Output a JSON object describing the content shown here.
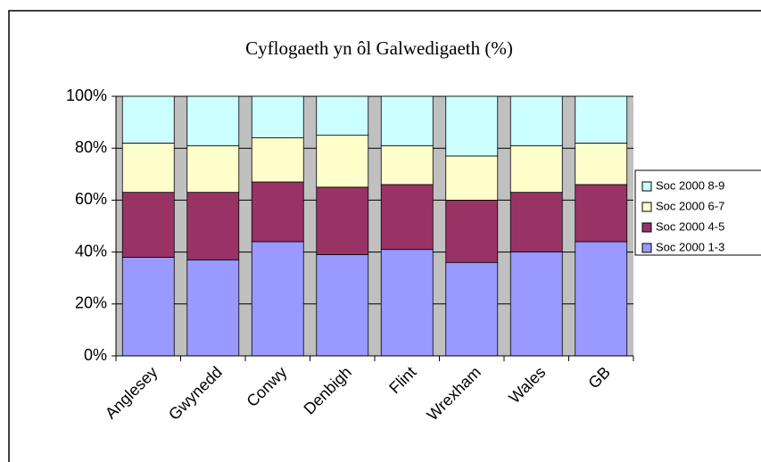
{
  "chart_data": {
    "type": "stacked_bar",
    "title": "Cyflogaeth yn ôl Galwedigaeth (%)",
    "categories": [
      "Anglesey",
      "Gwynedd",
      "Conwy",
      "Denbigh",
      "Flint",
      "Wrexham",
      "Wales",
      "GB"
    ],
    "series": [
      {
        "name": "Soc 2000 1-3",
        "color": "#9999ff",
        "values": [
          38,
          37,
          44,
          39,
          41,
          36,
          40,
          44
        ]
      },
      {
        "name": "Soc 2000 4-5",
        "color": "#993366",
        "values": [
          25,
          26,
          23,
          26,
          25,
          24,
          23,
          22
        ]
      },
      {
        "name": "Soc 2000 6-7",
        "color": "#ffffcc",
        "values": [
          19,
          18,
          17,
          20,
          15,
          17,
          18,
          16
        ]
      },
      {
        "name": "Soc 2000 8-9",
        "color": "#ccffff",
        "values": [
          18,
          19,
          16,
          15,
          19,
          23,
          19,
          18
        ]
      }
    ],
    "ylim": [
      0,
      100
    ],
    "yticks": [
      {
        "value": 0,
        "label": "0%"
      },
      {
        "value": 20,
        "label": "20%"
      },
      {
        "value": 40,
        "label": "40%"
      },
      {
        "value": 60,
        "label": "60%"
      },
      {
        "value": 80,
        "label": "80%"
      },
      {
        "value": 100,
        "label": "100%"
      }
    ],
    "grid": true,
    "legend": "right"
  }
}
